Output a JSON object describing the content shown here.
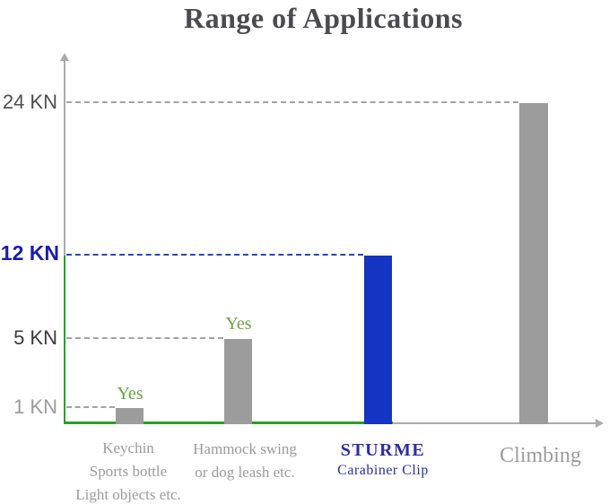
{
  "chart_data": {
    "type": "bar",
    "title": "Range of Applications",
    "xlabel": "",
    "ylabel": "",
    "unit": "KN",
    "ylim": [
      0,
      26
    ],
    "grid": false,
    "legend": "none",
    "categories": [
      "Keychin / Sports bottle / Light objects etc.",
      "Hammock swing or dog leash etc.",
      "STURME Carabiner Clip",
      "Climbing"
    ],
    "values": [
      1,
      5,
      12,
      24
    ],
    "bars": [
      {
        "label_lines": [
          "Keychin",
          "Sports bottle",
          "Light objects etc."
        ],
        "value_kn": 1,
        "annotation": "Yes",
        "color": "#9c9c9c"
      },
      {
        "label_lines": [
          "Hammock swing",
          "or dog leash etc."
        ],
        "value_kn": 5,
        "annotation": "Yes",
        "color": "#9c9c9c"
      },
      {
        "label_lines": [
          "STURME",
          "Carabiner Clip"
        ],
        "value_kn": 12,
        "annotation": null,
        "color": "#1434c4",
        "highlight": true
      },
      {
        "label_lines": [
          "Climbing"
        ],
        "value_kn": 24,
        "annotation": null,
        "color": "#9c9c9c"
      }
    ],
    "y_ticks": [
      {
        "label": "24 KN",
        "value": 24,
        "color": "#4f4f52",
        "bold": false
      },
      {
        "label": "12 KN",
        "value": 12,
        "color": "#1b1bb3",
        "bold": true
      },
      {
        "label": "5 KN",
        "value": 5,
        "color": "#3c3c3e",
        "bold": false
      },
      {
        "label": "1 KN",
        "value": 1,
        "color": "#9b9b9b",
        "bold": false
      }
    ],
    "leader_lines": [
      {
        "at_value": 24,
        "style": "dashed",
        "color": "#a3a3a3"
      },
      {
        "at_value": 12,
        "style": "dashed",
        "color": "#3240c0"
      },
      {
        "at_value": 5,
        "style": "dashed",
        "color": "#a3a3a3"
      },
      {
        "at_value": 1,
        "style": "dashed",
        "color": "#a3a3a3"
      }
    ],
    "axis_colors": {
      "y_upper": "#ababab",
      "y_lower": "#2b9e2b",
      "x_left": "#2b9e2b",
      "x_right": "#ababab"
    }
  },
  "colors": {
    "title": "#4b4b4f",
    "bar_gray": "#9c9c9c",
    "bar_blue": "#1434c4",
    "annotation_green": "#69a43f",
    "category_gray": "#9b9b9b",
    "sturme_blue": "#2c2caa"
  }
}
